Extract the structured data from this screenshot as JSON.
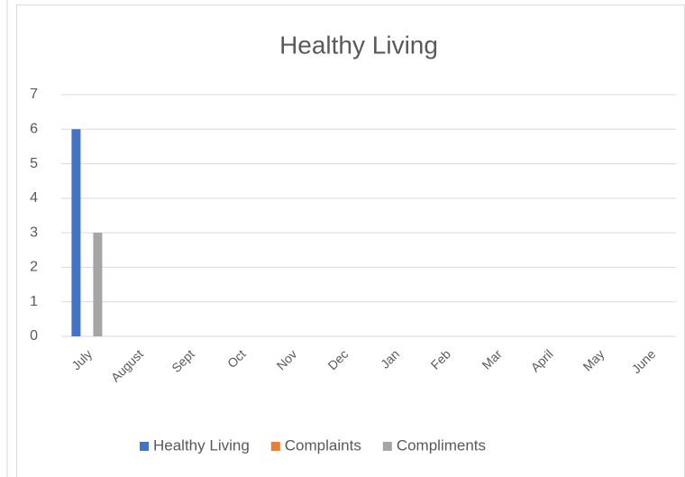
{
  "chart_data": {
    "type": "bar",
    "title": "Healthy Living",
    "categories": [
      "July",
      "August",
      "Sept",
      "Oct",
      "Nov",
      "Dec",
      "Jan",
      "Feb",
      "Mar",
      "April",
      "May",
      "June"
    ],
    "series": [
      {
        "name": "Healthy Living",
        "color": "#4472c4",
        "values": [
          6,
          0,
          0,
          0,
          0,
          0,
          0,
          0,
          0,
          0,
          0,
          0
        ]
      },
      {
        "name": "Complaints",
        "color": "#ed7d31",
        "values": [
          0,
          0,
          0,
          0,
          0,
          0,
          0,
          0,
          0,
          0,
          0,
          0
        ]
      },
      {
        "name": "Compliments",
        "color": "#a5a5a5",
        "values": [
          3,
          0,
          0,
          0,
          0,
          0,
          0,
          0,
          0,
          0,
          0,
          0
        ]
      }
    ],
    "ylim": [
      0,
      7
    ],
    "yticks": [
      0,
      1,
      2,
      3,
      4,
      5,
      6,
      7
    ],
    "grid": true,
    "legend": "bottom"
  }
}
